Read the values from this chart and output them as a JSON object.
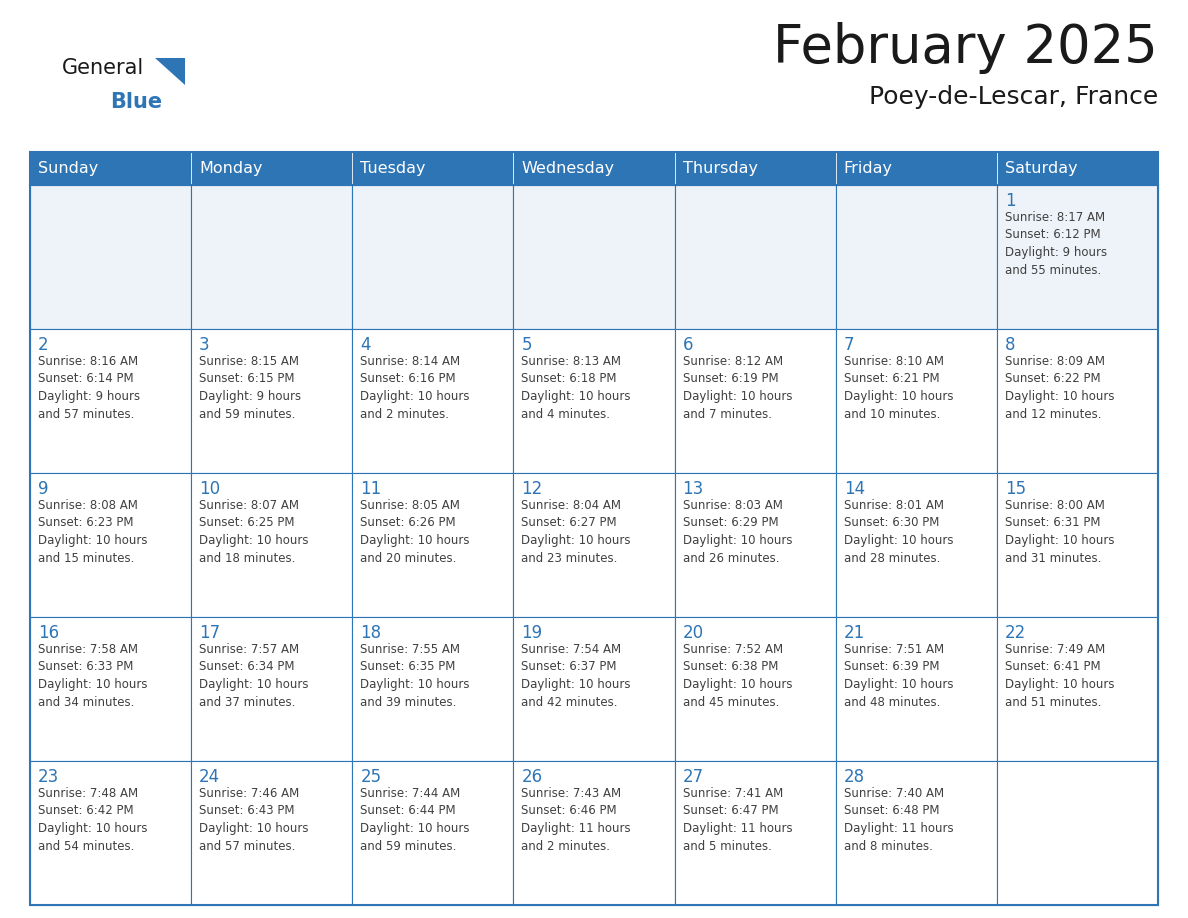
{
  "title": "February 2025",
  "subtitle": "Poey-de-Lescar, France",
  "days_of_week": [
    "Sunday",
    "Monday",
    "Tuesday",
    "Wednesday",
    "Thursday",
    "Friday",
    "Saturday"
  ],
  "header_bg": "#2E75B6",
  "header_text_color": "#FFFFFF",
  "cell_bg": "#FFFFFF",
  "row1_bg": "#EEF3F9",
  "border_color": "#2E75B6",
  "day_number_color": "#2E75B6",
  "info_text_color": "#404040",
  "title_color": "#1a1a1a",
  "subtitle_color": "#1a1a1a",
  "logo_general_color": "#1a1a1a",
  "logo_blue_color": "#2E75B6",
  "calendar_data": [
    [
      {
        "day": null,
        "info": ""
      },
      {
        "day": null,
        "info": ""
      },
      {
        "day": null,
        "info": ""
      },
      {
        "day": null,
        "info": ""
      },
      {
        "day": null,
        "info": ""
      },
      {
        "day": null,
        "info": ""
      },
      {
        "day": 1,
        "info": "Sunrise: 8:17 AM\nSunset: 6:12 PM\nDaylight: 9 hours\nand 55 minutes."
      }
    ],
    [
      {
        "day": 2,
        "info": "Sunrise: 8:16 AM\nSunset: 6:14 PM\nDaylight: 9 hours\nand 57 minutes."
      },
      {
        "day": 3,
        "info": "Sunrise: 8:15 AM\nSunset: 6:15 PM\nDaylight: 9 hours\nand 59 minutes."
      },
      {
        "day": 4,
        "info": "Sunrise: 8:14 AM\nSunset: 6:16 PM\nDaylight: 10 hours\nand 2 minutes."
      },
      {
        "day": 5,
        "info": "Sunrise: 8:13 AM\nSunset: 6:18 PM\nDaylight: 10 hours\nand 4 minutes."
      },
      {
        "day": 6,
        "info": "Sunrise: 8:12 AM\nSunset: 6:19 PM\nDaylight: 10 hours\nand 7 minutes."
      },
      {
        "day": 7,
        "info": "Sunrise: 8:10 AM\nSunset: 6:21 PM\nDaylight: 10 hours\nand 10 minutes."
      },
      {
        "day": 8,
        "info": "Sunrise: 8:09 AM\nSunset: 6:22 PM\nDaylight: 10 hours\nand 12 minutes."
      }
    ],
    [
      {
        "day": 9,
        "info": "Sunrise: 8:08 AM\nSunset: 6:23 PM\nDaylight: 10 hours\nand 15 minutes."
      },
      {
        "day": 10,
        "info": "Sunrise: 8:07 AM\nSunset: 6:25 PM\nDaylight: 10 hours\nand 18 minutes."
      },
      {
        "day": 11,
        "info": "Sunrise: 8:05 AM\nSunset: 6:26 PM\nDaylight: 10 hours\nand 20 minutes."
      },
      {
        "day": 12,
        "info": "Sunrise: 8:04 AM\nSunset: 6:27 PM\nDaylight: 10 hours\nand 23 minutes."
      },
      {
        "day": 13,
        "info": "Sunrise: 8:03 AM\nSunset: 6:29 PM\nDaylight: 10 hours\nand 26 minutes."
      },
      {
        "day": 14,
        "info": "Sunrise: 8:01 AM\nSunset: 6:30 PM\nDaylight: 10 hours\nand 28 minutes."
      },
      {
        "day": 15,
        "info": "Sunrise: 8:00 AM\nSunset: 6:31 PM\nDaylight: 10 hours\nand 31 minutes."
      }
    ],
    [
      {
        "day": 16,
        "info": "Sunrise: 7:58 AM\nSunset: 6:33 PM\nDaylight: 10 hours\nand 34 minutes."
      },
      {
        "day": 17,
        "info": "Sunrise: 7:57 AM\nSunset: 6:34 PM\nDaylight: 10 hours\nand 37 minutes."
      },
      {
        "day": 18,
        "info": "Sunrise: 7:55 AM\nSunset: 6:35 PM\nDaylight: 10 hours\nand 39 minutes."
      },
      {
        "day": 19,
        "info": "Sunrise: 7:54 AM\nSunset: 6:37 PM\nDaylight: 10 hours\nand 42 minutes."
      },
      {
        "day": 20,
        "info": "Sunrise: 7:52 AM\nSunset: 6:38 PM\nDaylight: 10 hours\nand 45 minutes."
      },
      {
        "day": 21,
        "info": "Sunrise: 7:51 AM\nSunset: 6:39 PM\nDaylight: 10 hours\nand 48 minutes."
      },
      {
        "day": 22,
        "info": "Sunrise: 7:49 AM\nSunset: 6:41 PM\nDaylight: 10 hours\nand 51 minutes."
      }
    ],
    [
      {
        "day": 23,
        "info": "Sunrise: 7:48 AM\nSunset: 6:42 PM\nDaylight: 10 hours\nand 54 minutes."
      },
      {
        "day": 24,
        "info": "Sunrise: 7:46 AM\nSunset: 6:43 PM\nDaylight: 10 hours\nand 57 minutes."
      },
      {
        "day": 25,
        "info": "Sunrise: 7:44 AM\nSunset: 6:44 PM\nDaylight: 10 hours\nand 59 minutes."
      },
      {
        "day": 26,
        "info": "Sunrise: 7:43 AM\nSunset: 6:46 PM\nDaylight: 11 hours\nand 2 minutes."
      },
      {
        "day": 27,
        "info": "Sunrise: 7:41 AM\nSunset: 6:47 PM\nDaylight: 11 hours\nand 5 minutes."
      },
      {
        "day": 28,
        "info": "Sunrise: 7:40 AM\nSunset: 6:48 PM\nDaylight: 11 hours\nand 8 minutes."
      },
      {
        "day": null,
        "info": ""
      }
    ]
  ]
}
